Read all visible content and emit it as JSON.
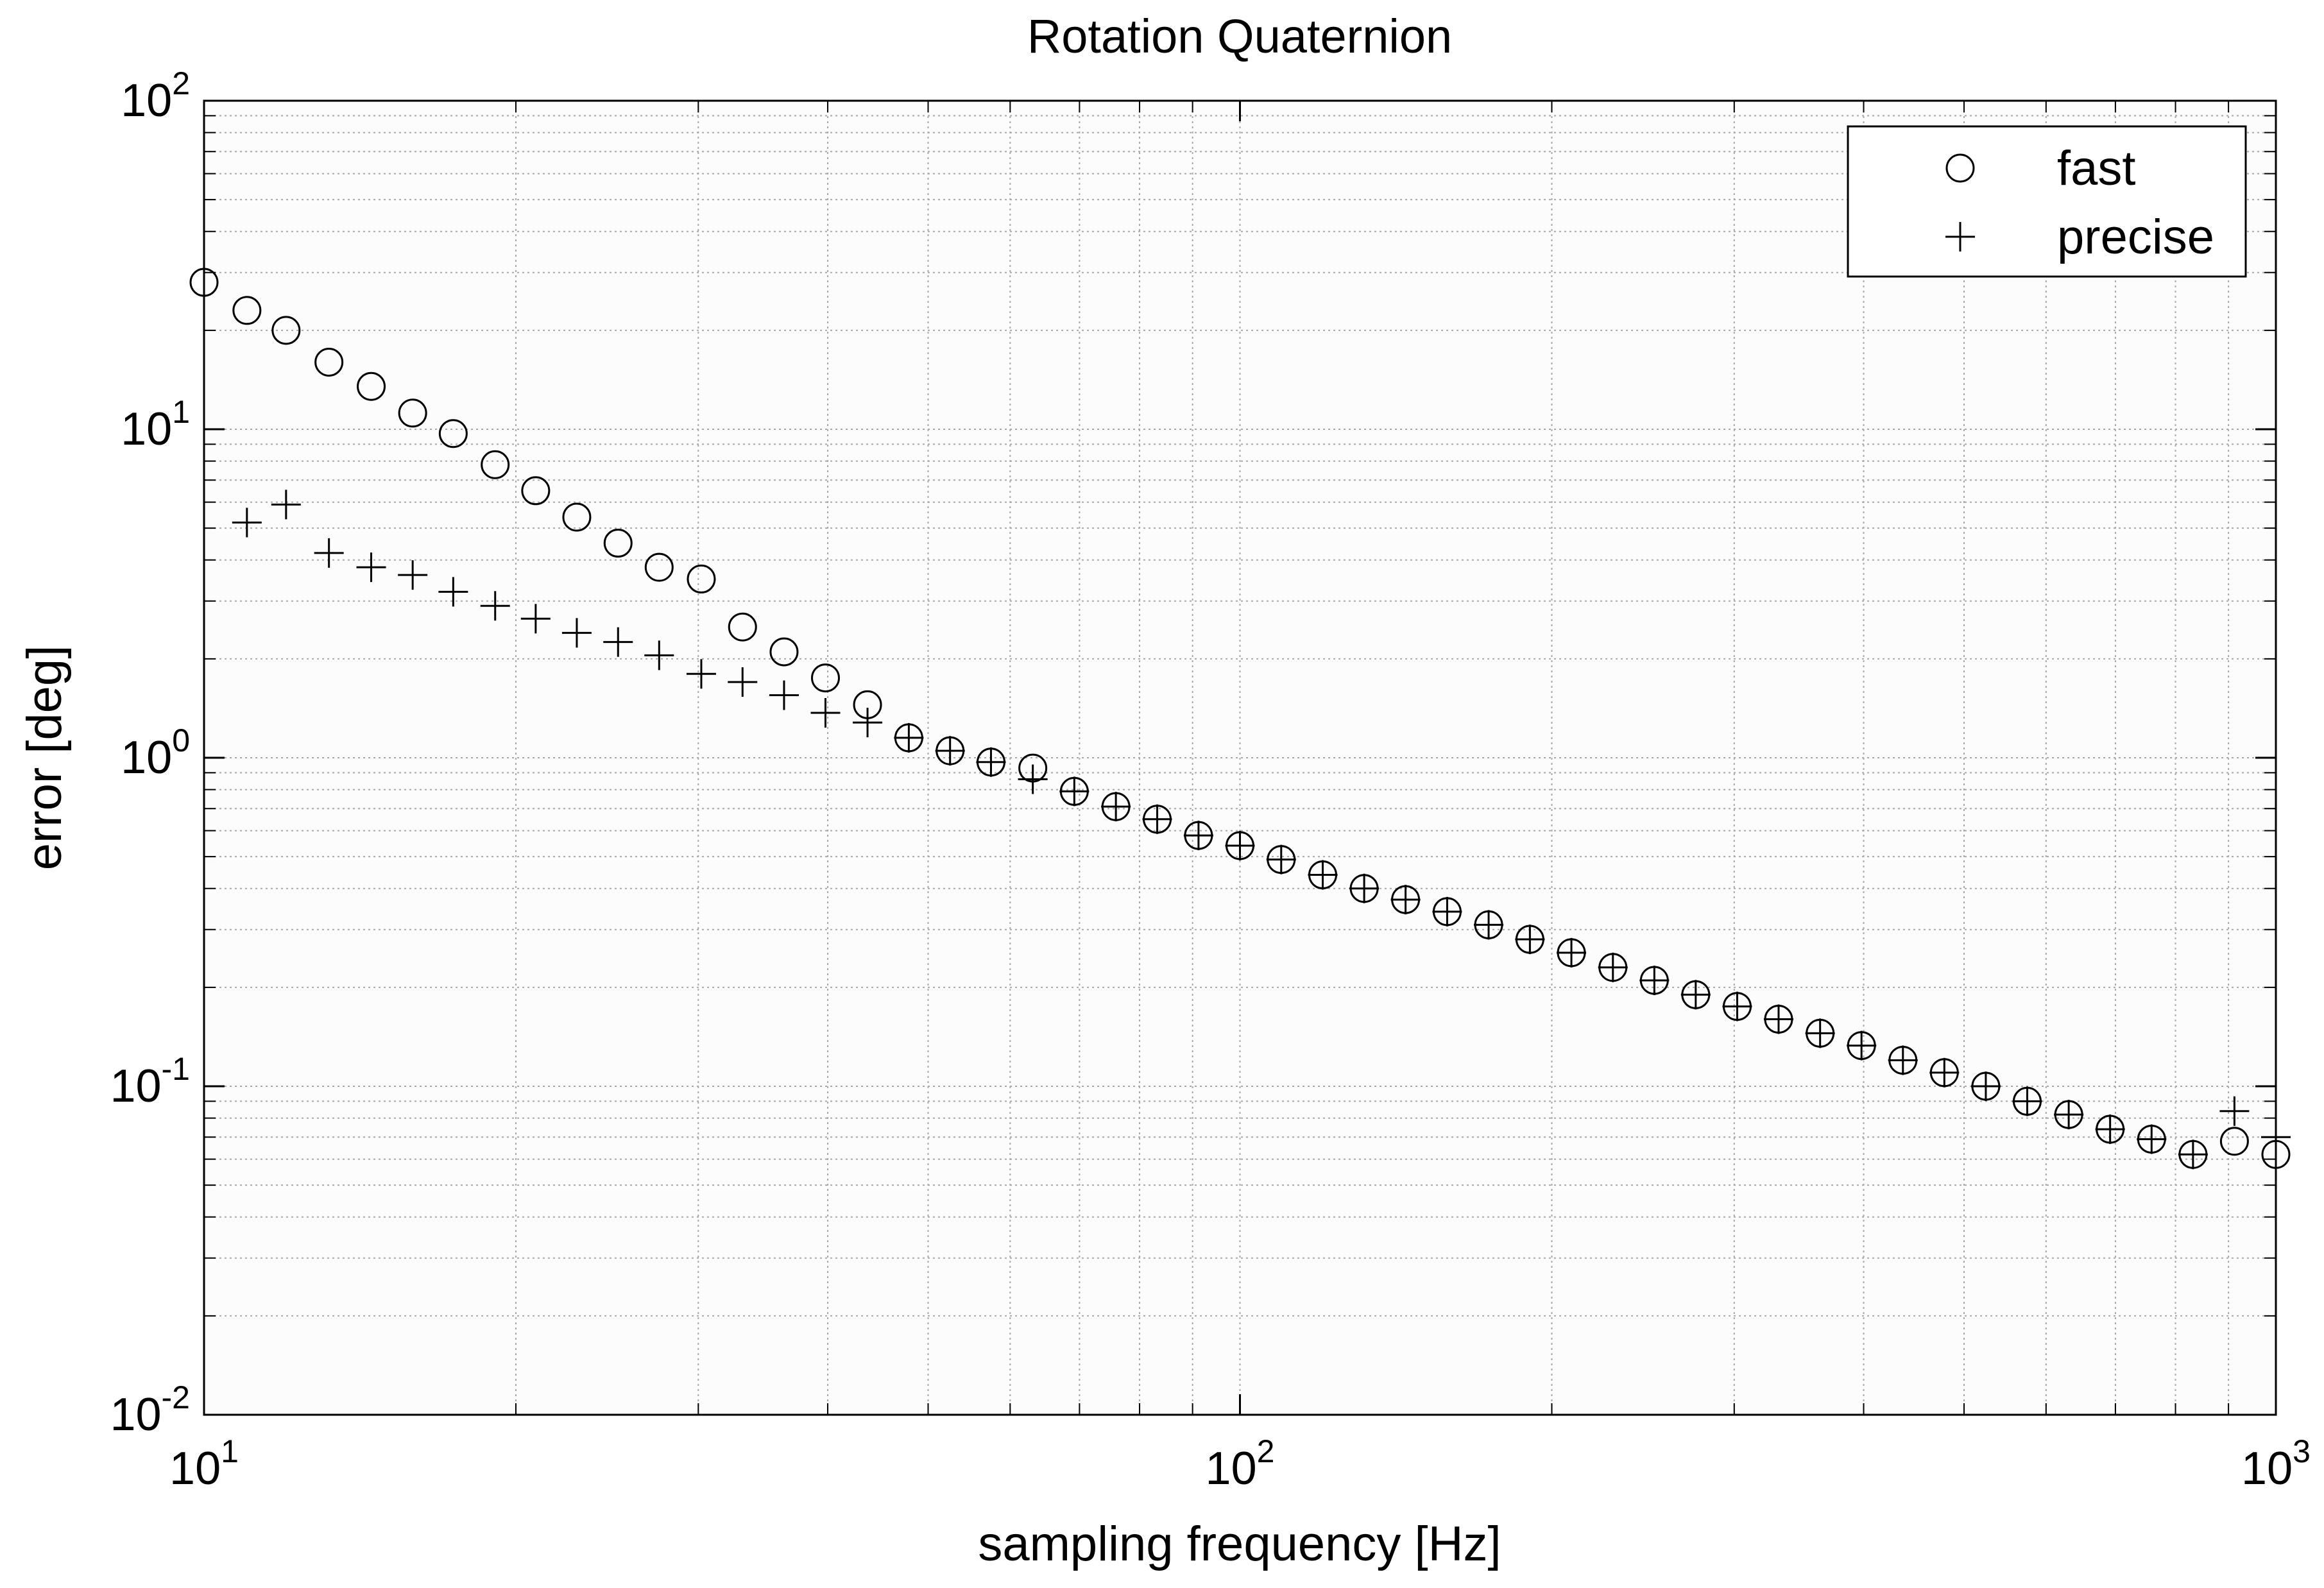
{
  "chart_data": {
    "type": "scatter",
    "title": "Rotation Quaternion",
    "xlabel": "sampling frequency [Hz]",
    "ylabel": "error [deg]",
    "xscale": "log",
    "yscale": "log",
    "xlim": [
      10,
      1000
    ],
    "ylim": [
      0.01,
      100
    ],
    "grid": true,
    "legend_position": "top-right",
    "x_ticks": [
      {
        "base": "10",
        "exp": "1",
        "value": 10
      },
      {
        "base": "10",
        "exp": "2",
        "value": 100
      },
      {
        "base": "10",
        "exp": "3",
        "value": 1000
      }
    ],
    "y_ticks": [
      {
        "base": "10",
        "exp": "-2",
        "value": 0.01
      },
      {
        "base": "10",
        "exp": "-1",
        "value": 0.1
      },
      {
        "base": "10",
        "exp": "0",
        "value": 1
      },
      {
        "base": "10",
        "exp": "1",
        "value": 10
      },
      {
        "base": "10",
        "exp": "2",
        "value": 100
      }
    ],
    "series": [
      {
        "name": "fast",
        "marker": "circle",
        "x": [
          10.0,
          11.0,
          12.0,
          13.2,
          14.5,
          15.9,
          17.4,
          19.1,
          20.9,
          22.9,
          25.1,
          27.5,
          30.2,
          33.1,
          36.3,
          39.8,
          43.7,
          47.9,
          52.5,
          57.5,
          63.1,
          69.2,
          75.9,
          83.2,
          91.2,
          100.0,
          109.6,
          120.2,
          131.8,
          144.5,
          158.5,
          173.8,
          190.5,
          208.9,
          229.1,
          251.2,
          275.4,
          302.0,
          331.1,
          363.1,
          398.1,
          436.5,
          478.6,
          524.8,
          575.4,
          631.0,
          691.8,
          758.6,
          831.8,
          912.0,
          1000.0
        ],
        "y": [
          28,
          23,
          20,
          16,
          13.5,
          11.2,
          9.7,
          7.8,
          6.5,
          5.4,
          4.5,
          3.8,
          3.5,
          2.5,
          2.1,
          1.75,
          1.45,
          1.15,
          1.05,
          0.97,
          0.93,
          0.79,
          0.71,
          0.65,
          0.58,
          0.54,
          0.49,
          0.44,
          0.4,
          0.37,
          0.34,
          0.31,
          0.28,
          0.255,
          0.23,
          0.21,
          0.19,
          0.175,
          0.16,
          0.145,
          0.133,
          0.12,
          0.11,
          0.1,
          0.09,
          0.082,
          0.074,
          0.069,
          0.062,
          0.068,
          0.062
        ]
      },
      {
        "name": "precise",
        "marker": "plus",
        "x": [
          11.0,
          12.0,
          13.2,
          14.5,
          15.9,
          17.4,
          19.1,
          20.9,
          22.9,
          25.1,
          27.5,
          30.2,
          33.1,
          36.3,
          39.8,
          43.7,
          47.9,
          52.5,
          57.5,
          63.1,
          69.2,
          75.9,
          83.2,
          91.2,
          100.0,
          109.6,
          120.2,
          131.8,
          144.5,
          158.5,
          173.8,
          190.5,
          208.9,
          229.1,
          251.2,
          275.4,
          302.0,
          331.1,
          363.1,
          398.1,
          436.5,
          478.6,
          524.8,
          575.4,
          631.0,
          691.8,
          758.6,
          831.8,
          912.0,
          1000.0
        ],
        "y": [
          5.2,
          5.9,
          4.2,
          3.8,
          3.6,
          3.2,
          2.9,
          2.65,
          2.4,
          2.25,
          2.05,
          1.8,
          1.7,
          1.55,
          1.37,
          1.28,
          1.15,
          1.05,
          0.97,
          0.86,
          0.79,
          0.71,
          0.65,
          0.58,
          0.54,
          0.49,
          0.44,
          0.4,
          0.37,
          0.34,
          0.31,
          0.28,
          0.255,
          0.23,
          0.21,
          0.19,
          0.175,
          0.16,
          0.145,
          0.133,
          0.12,
          0.11,
          0.1,
          0.09,
          0.082,
          0.074,
          0.069,
          0.062,
          0.084,
          0.07
        ]
      }
    ],
    "legend": [
      {
        "label": "fast",
        "marker": "circle"
      },
      {
        "label": "precise",
        "marker": "plus"
      }
    ]
  }
}
